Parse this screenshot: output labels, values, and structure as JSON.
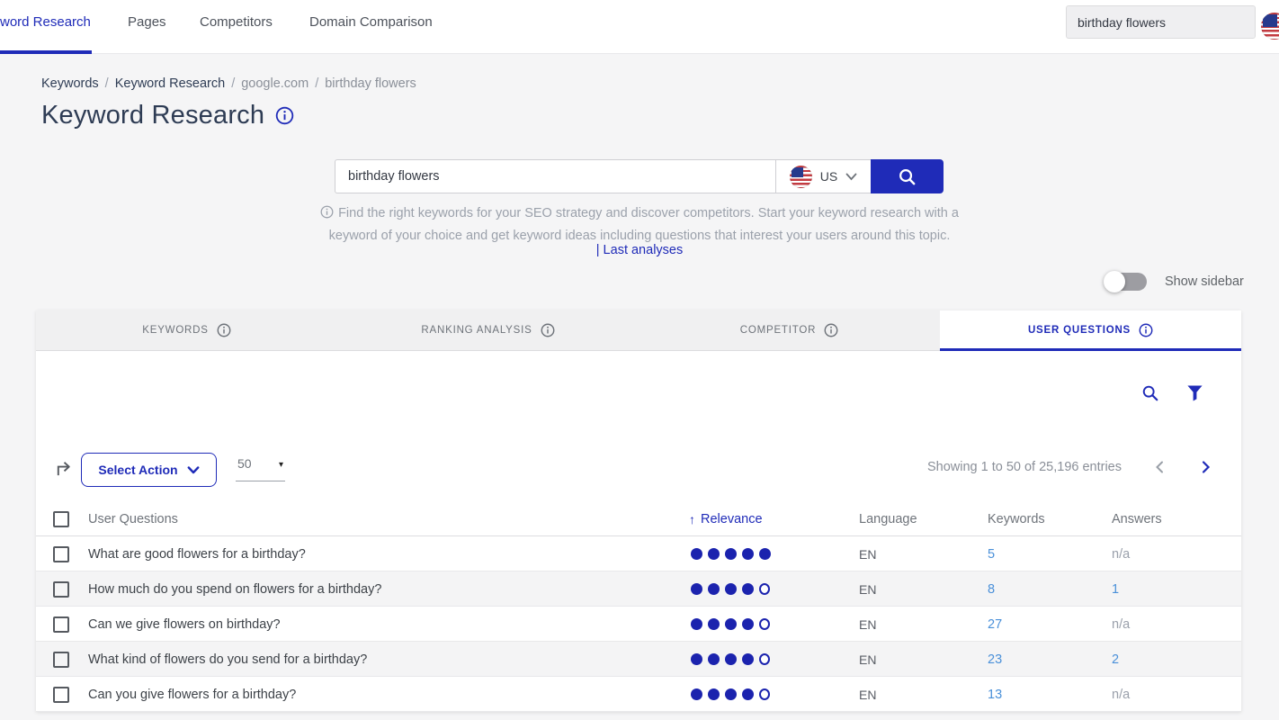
{
  "colors": {
    "primary": "#1f2bb8",
    "link": "#4a90d9",
    "dot": "#1b23ae",
    "search_button": "#1f2bb8"
  },
  "nav": {
    "items": [
      {
        "label": "word Research",
        "active": true
      },
      {
        "label": "Pages",
        "active": false
      },
      {
        "label": "Competitors",
        "active": false
      },
      {
        "label": "Domain Comparison",
        "active": false
      }
    ],
    "search_value": "birthday flowers",
    "flag": "us-flag"
  },
  "breadcrumb": {
    "separator": "/",
    "items": [
      "Keywords",
      "Keyword Research",
      "google.com",
      "birthday flowers"
    ]
  },
  "page": {
    "title": "Keyword Research"
  },
  "search": {
    "value": "birthday flowers",
    "country_code": "US",
    "hint_line1": "Find the right keywords for your SEO strategy and discover competitors. Start your keyword research with a",
    "hint_line2": "keyword of your choice and get keyword ideas including questions that interest your users around this topic.",
    "last_analyses_label": "| Last analyses"
  },
  "sidebar_toggle": {
    "label": "Show sidebar",
    "state": "off"
  },
  "tabs": [
    {
      "label": "KEYWORDS",
      "active": false
    },
    {
      "label": "RANKING ANALYSIS",
      "active": false
    },
    {
      "label": "COMPETITOR",
      "active": false
    },
    {
      "label": "USER QUESTIONS",
      "active": true
    }
  ],
  "toolbar": {
    "select_action_label": "Select Action",
    "page_size": "50",
    "showing_text": "Showing 1 to 50 of 25,196 entries"
  },
  "table": {
    "columns": {
      "questions": "User Questions",
      "relevance": "Relevance",
      "language": "Language",
      "keywords": "Keywords",
      "answers": "Answers"
    },
    "sort": {
      "column": "Relevance",
      "direction": "asc",
      "arrow": "↑"
    },
    "relevance_max": 5,
    "rows": [
      {
        "question": "What are good flowers for a birthday?",
        "relevance": 5,
        "language": "EN",
        "keywords": "5",
        "answers": "n/a"
      },
      {
        "question": "How much do you spend on flowers for a birthday?",
        "relevance": 4,
        "language": "EN",
        "keywords": "8",
        "answers": "1"
      },
      {
        "question": "Can we give flowers on birthday?",
        "relevance": 4,
        "language": "EN",
        "keywords": "27",
        "answers": "n/a"
      },
      {
        "question": "What kind of flowers do you send for a birthday?",
        "relevance": 4,
        "language": "EN",
        "keywords": "23",
        "answers": "2"
      },
      {
        "question": "Can you give flowers for a birthday?",
        "relevance": 4,
        "language": "EN",
        "keywords": "13",
        "answers": "n/a"
      }
    ]
  }
}
